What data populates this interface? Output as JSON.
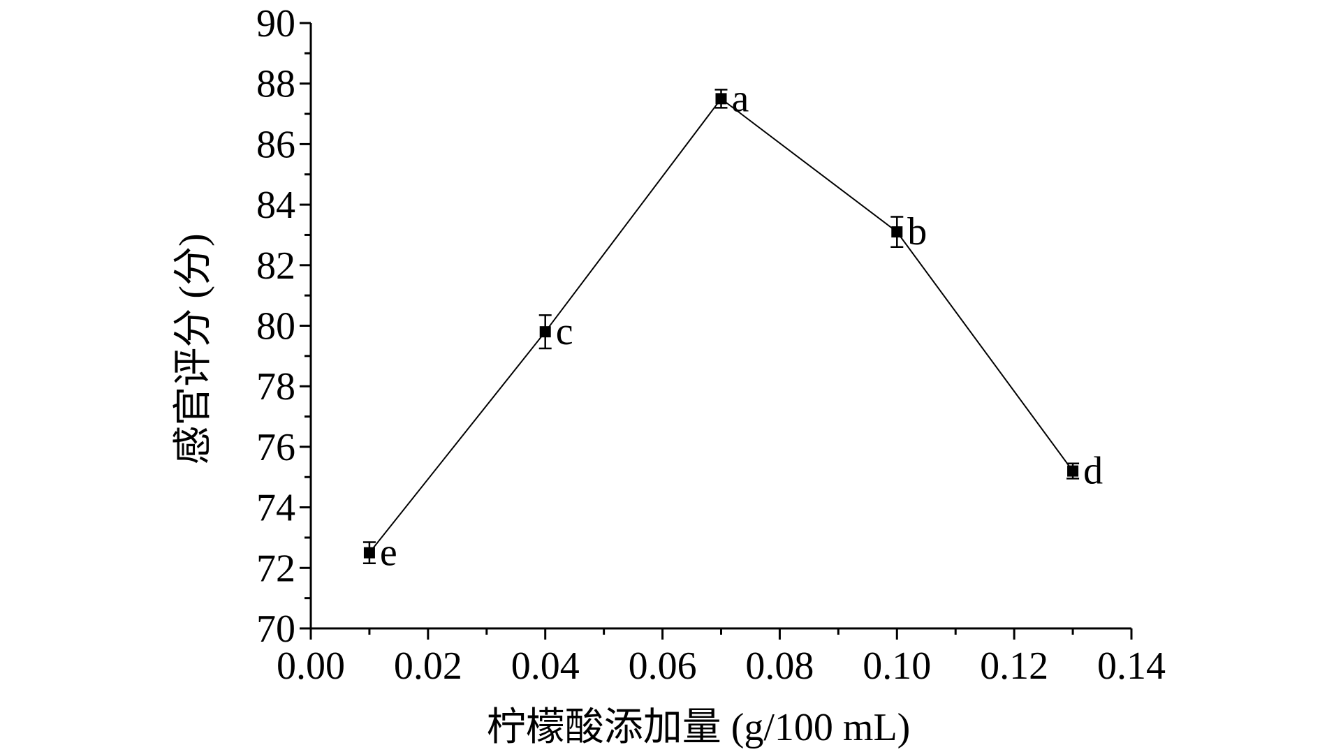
{
  "chart_data": {
    "type": "line",
    "title": "",
    "xlabel": "柠檬酸添加量 (g/100 mL)",
    "ylabel": "感官评分 (分)",
    "xlim": [
      0.0,
      0.14
    ],
    "ylim": [
      70,
      90
    ],
    "x_ticks": [
      "0.00",
      "0.02",
      "0.04",
      "0.06",
      "0.08",
      "0.10",
      "0.12",
      "0.14"
    ],
    "y_ticks": [
      "70",
      "72",
      "74",
      "76",
      "78",
      "80",
      "82",
      "84",
      "86",
      "88",
      "90"
    ],
    "grid": false,
    "legend": "none",
    "series": [
      {
        "x": [
          0.01,
          0.04,
          0.07,
          0.1,
          0.13
        ],
        "y": [
          72.5,
          79.8,
          87.5,
          83.1,
          75.2
        ],
        "error": [
          0.35,
          0.55,
          0.3,
          0.5,
          0.25
        ],
        "labels": [
          "e",
          "c",
          "a",
          "b",
          "d"
        ]
      }
    ],
    "line_color": "#000000",
    "marker": "square"
  }
}
